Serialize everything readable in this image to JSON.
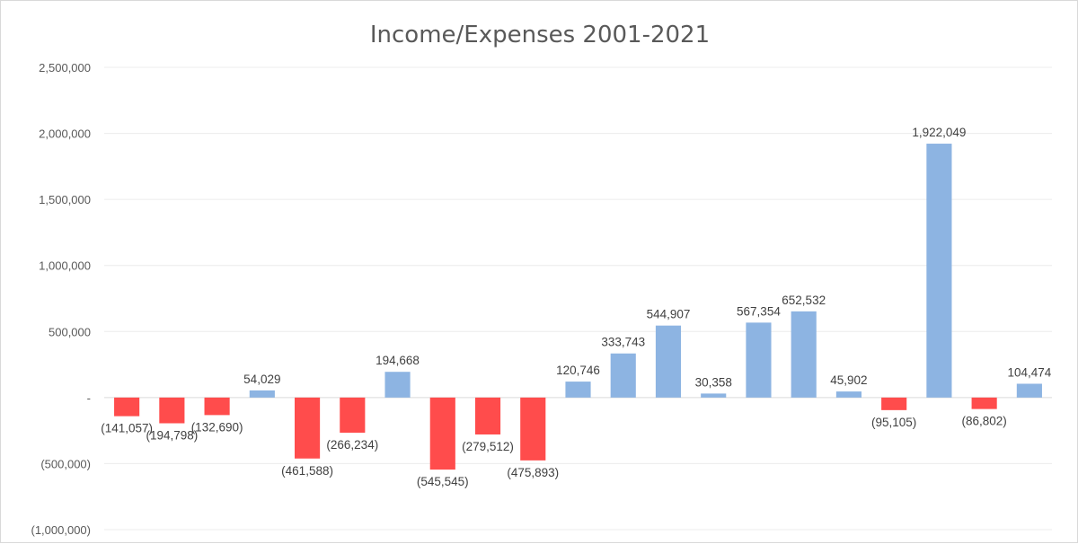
{
  "chart_data": {
    "type": "bar",
    "title": "Income/Expenses 2001-2021",
    "xlabel": "",
    "ylabel": "",
    "ylim": [
      -1000000,
      2500000
    ],
    "y_ticks": [
      2500000,
      2000000,
      1500000,
      1000000,
      500000,
      0,
      -500000,
      -1000000
    ],
    "y_tick_labels": [
      "2,500,000",
      "2,000,000",
      "1,500,000",
      "1,000,000",
      "500,000",
      "-",
      "(500,000)",
      "(1,000,000)"
    ],
    "grid": true,
    "legend": "none",
    "colors": {
      "positive": "#8db4e2",
      "negative": "#ff4c4c"
    },
    "values": [
      -141057,
      -194798,
      -132690,
      54029,
      -461588,
      -266234,
      194668,
      -545545,
      -279512,
      -475893,
      120746,
      333743,
      544907,
      30358,
      567354,
      652532,
      45902,
      -95105,
      1922049,
      -86802,
      104474
    ],
    "data_labels": [
      "(141,057)",
      "(194,798)",
      "(132,690)",
      "54,029",
      "(461,588)",
      "(266,234)",
      "194,668",
      "(545,545)",
      "(279,512)",
      "(475,893)",
      "120,746",
      "333,743",
      "544,907",
      "30,358",
      "567,354",
      "652,532",
      "45,902",
      "(95,105)",
      "1,922,049",
      "(86,802)",
      "104,474"
    ]
  }
}
